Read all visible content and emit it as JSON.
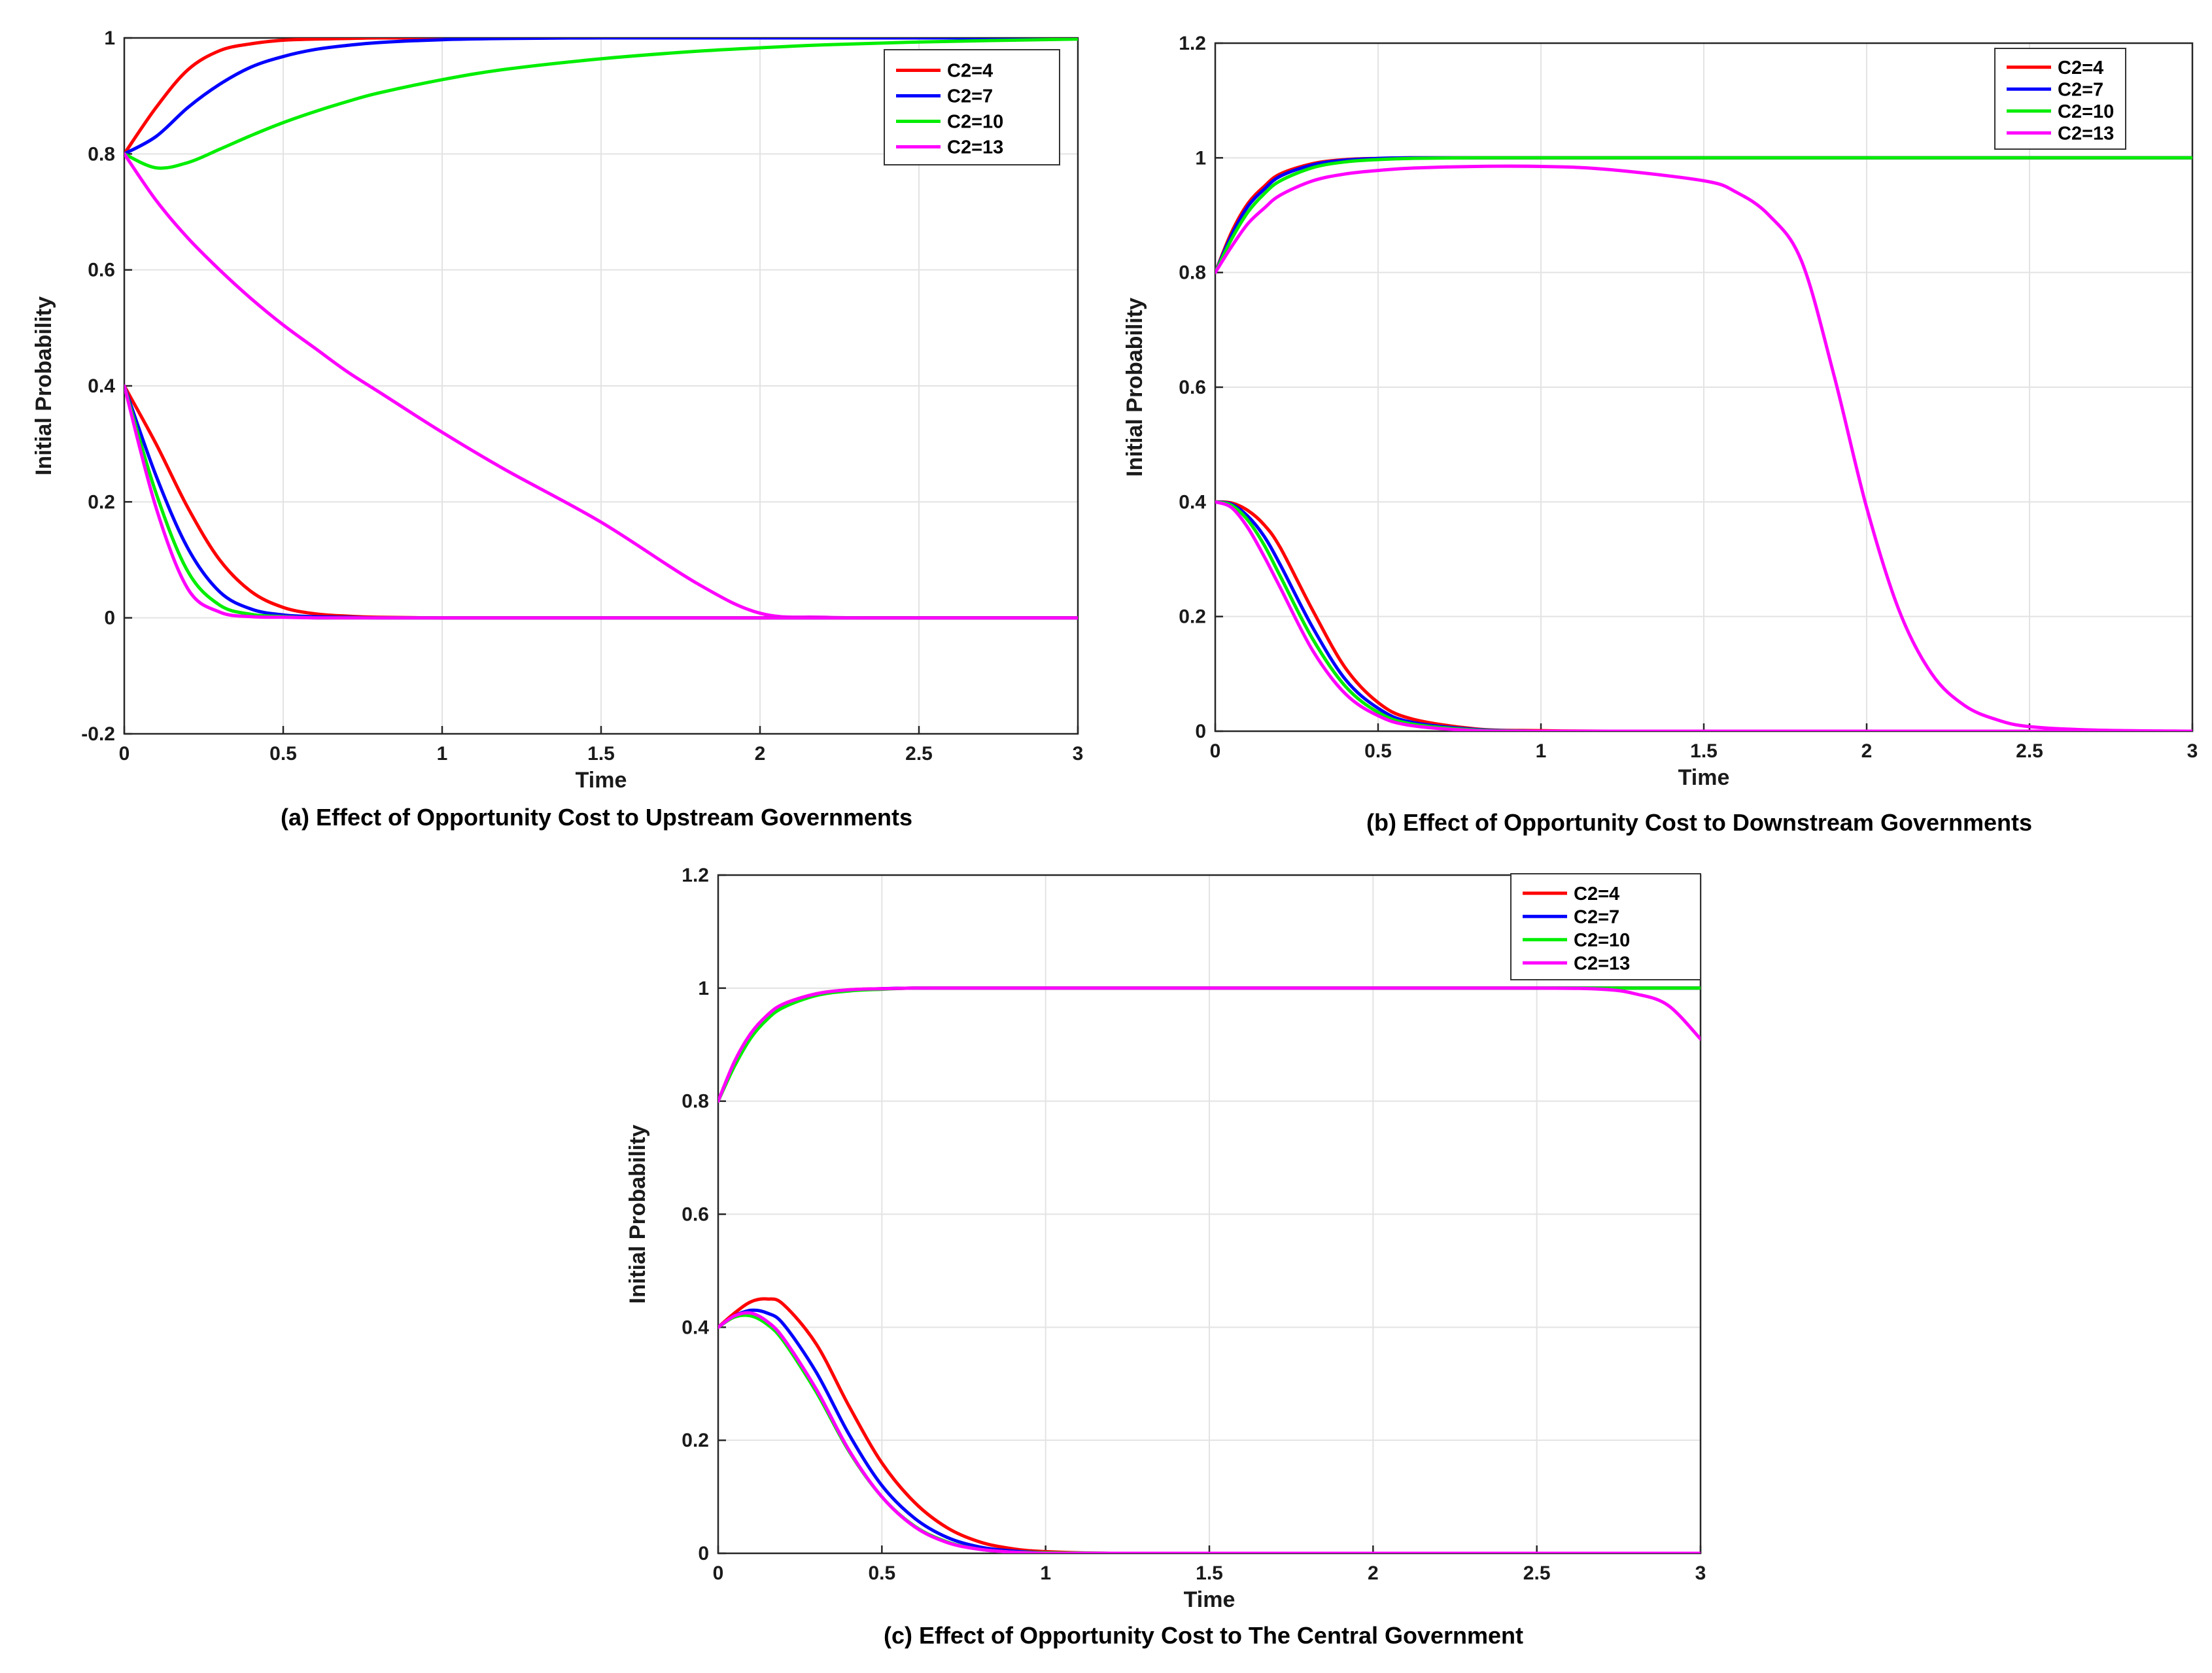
{
  "figure": {
    "panels": [
      {
        "id": "a",
        "caption": "(a) Effect of Opportunity Cost to Upstream Governments"
      },
      {
        "id": "b",
        "caption": "(b) Effect of Opportunity Cost to Downstream Governments"
      },
      {
        "id": "c",
        "caption": "(c) Effect of Opportunity Cost to The Central Government"
      }
    ]
  },
  "chart_data": [
    {
      "type": "line",
      "panel": "a",
      "title": "(a) Effect of Opportunity Cost to Upstream Governments",
      "xlabel": "Time",
      "ylabel": "Initial Probability",
      "xlim": [
        0,
        3
      ],
      "ylim": [
        -0.2,
        1
      ],
      "xticks": [
        "0",
        "0.5",
        "1",
        "1.5",
        "2",
        "2.5",
        "3"
      ],
      "yticks": [
        "-0.2",
        "0",
        "0.2",
        "0.4",
        "0.6",
        "0.8",
        "1"
      ],
      "grid": true,
      "legend_position": "top-right",
      "x": [
        0,
        0.1,
        0.2,
        0.3,
        0.4,
        0.5,
        0.6,
        0.7,
        0.8,
        1.0,
        1.2,
        1.5,
        1.8,
        2.0,
        2.2,
        2.5,
        3.0
      ],
      "series": [
        {
          "name": "C2=4",
          "color": "#ff0000",
          "values": [
            0.8,
            0.88,
            0.945,
            0.978,
            0.99,
            0.996,
            0.998,
            0.999,
            1,
            1,
            1,
            1,
            1,
            1,
            1,
            1,
            1
          ]
        },
        {
          "name": "C2=7",
          "color": "#0000ff",
          "values": [
            0.8,
            0.83,
            0.88,
            0.92,
            0.95,
            0.968,
            0.98,
            0.987,
            0.992,
            0.997,
            0.999,
            1,
            1,
            1,
            1,
            1,
            1
          ]
        },
        {
          "name": "C2=10",
          "color": "#00ee00",
          "values": [
            0.8,
            0.776,
            0.785,
            0.808,
            0.832,
            0.854,
            0.873,
            0.89,
            0.905,
            0.928,
            0.946,
            0.964,
            0.977,
            0.983,
            0.988,
            0.993,
            0.998
          ]
        },
        {
          "name": "C2=13",
          "color": "#ff00ff",
          "values": [
            0.8,
            0.72,
            0.655,
            0.6,
            0.55,
            0.505,
            0.465,
            0.425,
            0.39,
            0.32,
            0.255,
            0.165,
            0.06,
            0.008,
            0.001,
            0,
            0
          ]
        },
        {
          "name": "C2=4",
          "color": "#ff0000",
          "values": [
            0.4,
            0.3,
            0.19,
            0.1,
            0.045,
            0.018,
            0.007,
            0.003,
            0.001,
            0,
            0,
            0,
            0,
            0,
            0,
            0,
            0
          ]
        },
        {
          "name": "C2=7",
          "color": "#0000ff",
          "values": [
            0.4,
            0.245,
            0.12,
            0.045,
            0.015,
            0.005,
            0.002,
            0.001,
            0,
            0,
            0,
            0,
            0,
            0,
            0,
            0,
            0
          ]
        },
        {
          "name": "C2=10",
          "color": "#00ee00",
          "values": [
            0.4,
            0.215,
            0.08,
            0.022,
            0.006,
            0.002,
            0,
            0,
            0,
            0,
            0,
            0,
            0,
            0,
            0,
            0,
            0
          ]
        },
        {
          "name": "C2=13",
          "color": "#ff00ff",
          "values": [
            0.4,
            0.19,
            0.05,
            0.01,
            0.002,
            0.001,
            0,
            0,
            0,
            0,
            0,
            0,
            0,
            0,
            0,
            0,
            0
          ]
        }
      ],
      "legend": [
        "C2=4",
        "C2=7",
        "C2=10",
        "C2=13"
      ],
      "legend_colors": [
        "#ff0000",
        "#0000ff",
        "#00ee00",
        "#ff00ff"
      ]
    },
    {
      "type": "line",
      "panel": "b",
      "title": "(b) Effect of Opportunity Cost to Downstream Governments",
      "xlabel": "Time",
      "ylabel": "Initial Probability",
      "xlim": [
        0,
        3
      ],
      "ylim": [
        0,
        1.2
      ],
      "xticks": [
        "0",
        "0.5",
        "1",
        "1.5",
        "2",
        "2.5",
        "3"
      ],
      "yticks": [
        "0",
        "0.2",
        "0.4",
        "0.6",
        "0.8",
        "1",
        "1.2"
      ],
      "grid": true,
      "legend_position": "top-right",
      "x": [
        0,
        0.05,
        0.1,
        0.15,
        0.2,
        0.3,
        0.4,
        0.5,
        0.6,
        0.8,
        1.0,
        1.2,
        1.5,
        1.6,
        1.7,
        1.8,
        1.9,
        2.0,
        2.1,
        2.2,
        2.3,
        2.4,
        2.5,
        2.7,
        3.0
      ],
      "series": [
        {
          "name": "C2=4",
          "color": "#ff0000",
          "values": [
            0.8,
            0.87,
            0.92,
            0.95,
            0.972,
            0.99,
            0.997,
            0.999,
            1,
            1,
            1,
            1,
            1,
            1,
            1,
            1,
            1,
            1,
            1,
            1,
            1,
            1,
            1,
            1,
            1
          ]
        },
        {
          "name": "C2=7",
          "color": "#0000ff",
          "values": [
            0.8,
            0.865,
            0.915,
            0.945,
            0.968,
            0.988,
            0.996,
            0.999,
            1,
            1,
            1,
            1,
            1,
            1,
            1,
            1,
            1,
            1,
            1,
            1,
            1,
            1,
            1,
            1,
            1
          ]
        },
        {
          "name": "C2=10",
          "color": "#00ee00",
          "values": [
            0.8,
            0.858,
            0.905,
            0.937,
            0.96,
            0.983,
            0.993,
            0.997,
            0.999,
            1,
            1,
            1,
            1,
            1,
            1,
            1,
            1,
            1,
            1,
            1,
            1,
            1,
            1,
            1,
            1
          ]
        },
        {
          "name": "C2=13",
          "color": "#ff00ff",
          "values": [
            0.8,
            0.845,
            0.885,
            0.912,
            0.935,
            0.96,
            0.972,
            0.978,
            0.982,
            0.985,
            0.985,
            0.98,
            0.96,
            0.94,
            0.9,
            0.82,
            0.62,
            0.39,
            0.21,
            0.1,
            0.045,
            0.02,
            0.008,
            0.002,
            0
          ]
        },
        {
          "name": "C2=4",
          "color": "#ff0000",
          "values": [
            0.4,
            0.398,
            0.385,
            0.36,
            0.32,
            0.21,
            0.11,
            0.05,
            0.022,
            0.004,
            0.001,
            0,
            0,
            0,
            0,
            0,
            0,
            0,
            0,
            0,
            0,
            0,
            0,
            0,
            0
          ]
        },
        {
          "name": "C2=7",
          "color": "#0000ff",
          "values": [
            0.4,
            0.396,
            0.375,
            0.34,
            0.29,
            0.18,
            0.09,
            0.04,
            0.016,
            0.003,
            0,
            0,
            0,
            0,
            0,
            0,
            0,
            0,
            0,
            0,
            0,
            0,
            0,
            0,
            0
          ]
        },
        {
          "name": "C2=10",
          "color": "#00ee00",
          "values": [
            0.4,
            0.394,
            0.368,
            0.325,
            0.27,
            0.16,
            0.078,
            0.033,
            0.013,
            0.002,
            0,
            0,
            0,
            0,
            0,
            0,
            0,
            0,
            0,
            0,
            0,
            0,
            0,
            0,
            0
          ]
        },
        {
          "name": "C2=13",
          "color": "#ff00ff",
          "values": [
            0.4,
            0.39,
            0.355,
            0.305,
            0.25,
            0.14,
            0.065,
            0.027,
            0.01,
            0.001,
            0,
            0,
            0,
            0,
            0,
            0,
            0,
            0,
            0,
            0,
            0,
            0,
            0,
            0,
            0
          ]
        }
      ],
      "legend": [
        "C2=4",
        "C2=7",
        "C2=10",
        "C2=13"
      ],
      "legend_colors": [
        "#ff0000",
        "#0000ff",
        "#00ee00",
        "#ff00ff"
      ]
    },
    {
      "type": "line",
      "panel": "c",
      "title": "(c) Effect of Opportunity Cost to The Central Government",
      "xlabel": "Time",
      "ylabel": "Initial Probability",
      "xlim": [
        0,
        3
      ],
      "ylim": [
        0,
        1.2
      ],
      "xticks": [
        "0",
        "0.5",
        "1",
        "1.5",
        "2",
        "2.5",
        "3"
      ],
      "yticks": [
        "0",
        "0.2",
        "0.4",
        "0.6",
        "0.8",
        "1",
        "1.2"
      ],
      "grid": true,
      "legend_position": "top-right",
      "x": [
        0,
        0.05,
        0.1,
        0.15,
        0.2,
        0.3,
        0.4,
        0.5,
        0.6,
        0.7,
        0.8,
        0.9,
        1.0,
        1.2,
        1.5,
        2.0,
        2.5,
        2.7,
        2.8,
        2.9,
        3.0
      ],
      "series": [
        {
          "name": "C2=4",
          "color": "#ff0000",
          "values": [
            0.8,
            0.87,
            0.92,
            0.952,
            0.972,
            0.99,
            0.997,
            0.999,
            1,
            1,
            1,
            1,
            1,
            1,
            1,
            1,
            1,
            1,
            1,
            1,
            1
          ]
        },
        {
          "name": "C2=7",
          "color": "#0000ff",
          "values": [
            0.8,
            0.867,
            0.917,
            0.95,
            0.97,
            0.989,
            0.996,
            0.999,
            1,
            1,
            1,
            1,
            1,
            1,
            1,
            1,
            1,
            1,
            1,
            1,
            1
          ]
        },
        {
          "name": "C2=10",
          "color": "#00ee00",
          "values": [
            0.8,
            0.862,
            0.912,
            0.945,
            0.966,
            0.987,
            0.995,
            0.998,
            1,
            1,
            1,
            1,
            1,
            1,
            1,
            1,
            1,
            1,
            1,
            1,
            1
          ]
        },
        {
          "name": "C2=13",
          "color": "#ff00ff",
          "values": [
            0.8,
            0.87,
            0.92,
            0.952,
            0.972,
            0.99,
            0.997,
            0.999,
            1,
            1,
            1,
            1,
            1,
            1,
            1,
            1,
            1,
            0.998,
            0.99,
            0.97,
            0.91
          ]
        },
        {
          "name": "C2=4",
          "color": "#ff0000",
          "values": [
            0.4,
            0.425,
            0.445,
            0.45,
            0.44,
            0.37,
            0.26,
            0.16,
            0.09,
            0.045,
            0.02,
            0.008,
            0.003,
            0,
            0,
            0,
            0,
            0,
            0,
            0,
            0
          ]
        },
        {
          "name": "C2=7",
          "color": "#0000ff",
          "values": [
            0.4,
            0.42,
            0.43,
            0.425,
            0.405,
            0.32,
            0.21,
            0.12,
            0.062,
            0.028,
            0.011,
            0.004,
            0.001,
            0,
            0,
            0,
            0,
            0,
            0,
            0,
            0
          ]
        },
        {
          "name": "C2=10",
          "color": "#00ee00",
          "values": [
            0.4,
            0.418,
            0.42,
            0.405,
            0.375,
            0.285,
            0.18,
            0.1,
            0.048,
            0.02,
            0.007,
            0.002,
            0.001,
            0,
            0,
            0,
            0,
            0,
            0,
            0,
            0
          ]
        },
        {
          "name": "C2=13",
          "color": "#ff00ff",
          "values": [
            0.4,
            0.42,
            0.425,
            0.41,
            0.38,
            0.29,
            0.182,
            0.1,
            0.047,
            0.019,
            0.007,
            0.002,
            0,
            0,
            0,
            0,
            0,
            0,
            0,
            0,
            0
          ]
        }
      ],
      "legend": [
        "C2=4",
        "C2=7",
        "C2=10",
        "C2=13"
      ],
      "legend_colors": [
        "#ff0000",
        "#0000ff",
        "#00ee00",
        "#ff00ff"
      ]
    }
  ]
}
